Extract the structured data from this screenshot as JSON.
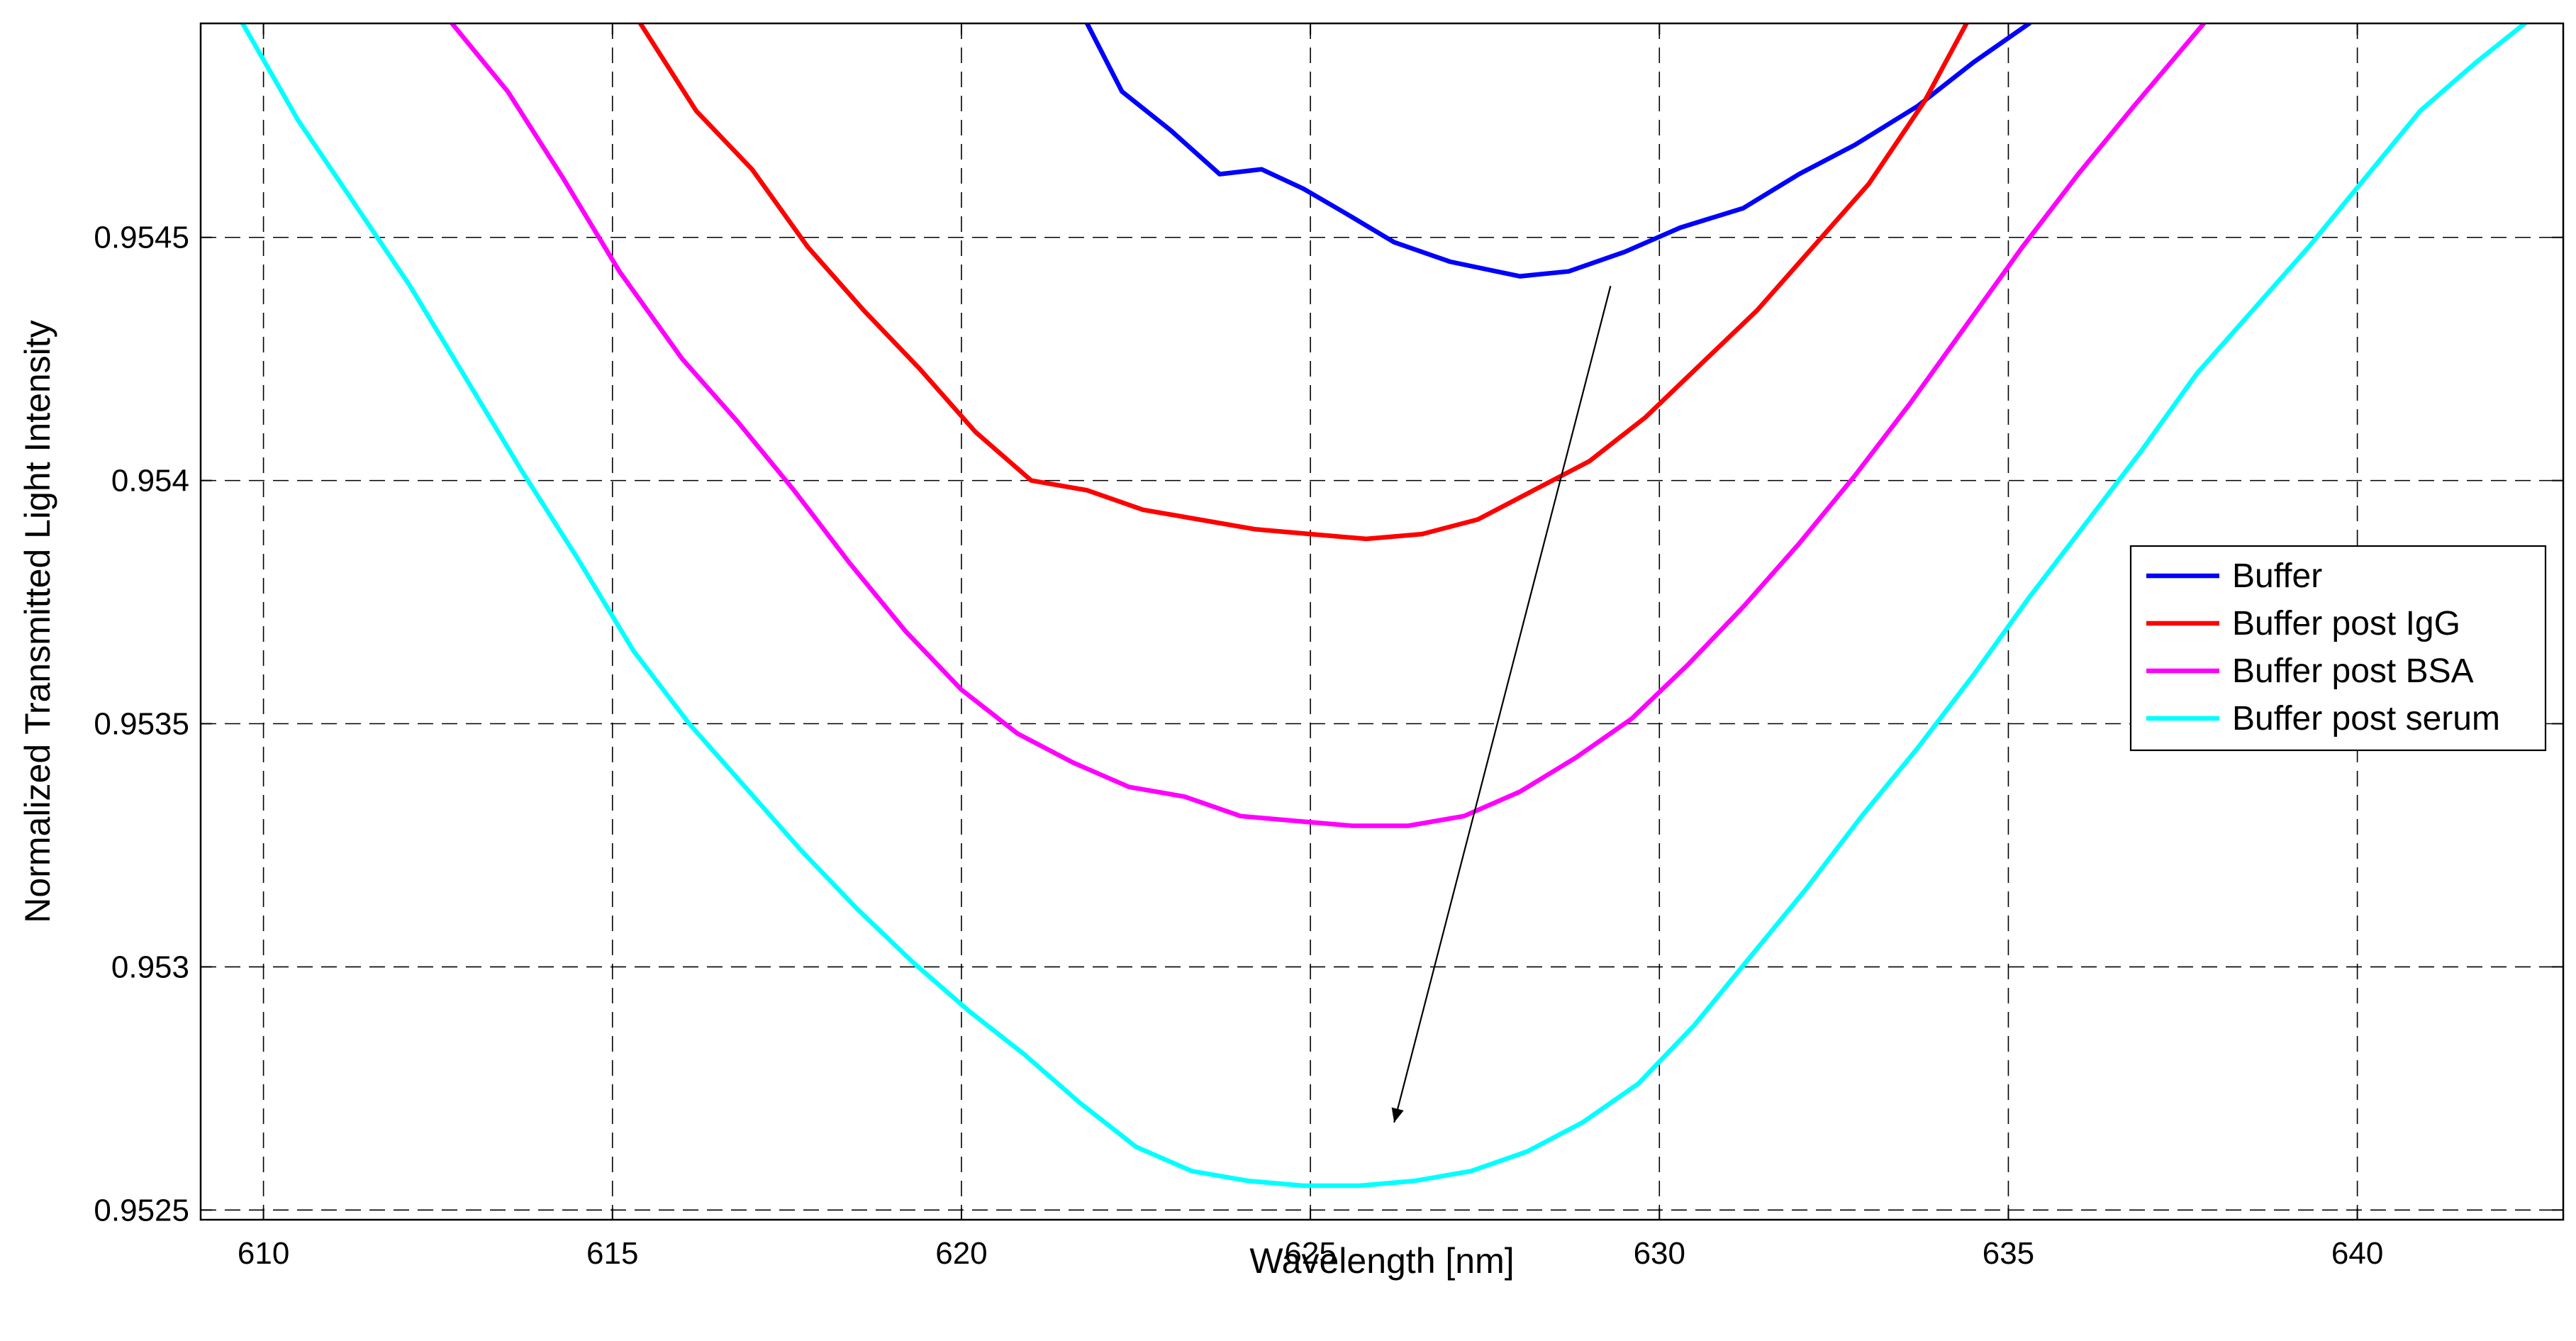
{
  "chart_data": {
    "type": "line",
    "title": "",
    "xlabel": "Wavelength [nm]",
    "ylabel": "Normalized Transmitted Light Intensity",
    "xlim": [
      609.1,
      642.95
    ],
    "ylim": [
      0.95248,
      0.95494
    ],
    "x_ticks": [
      610,
      615,
      620,
      625,
      630,
      635,
      640
    ],
    "x_tick_labels": [
      "610",
      "615",
      "620",
      "625",
      "630",
      "635",
      "640"
    ],
    "y_ticks": [
      0.9525,
      0.953,
      0.9535,
      0.954,
      0.9545
    ],
    "y_tick_labels": [
      "0.9525",
      "0.953",
      "0.9535",
      "0.954",
      "0.9545"
    ],
    "grid": true,
    "legend_position": "right",
    "series": [
      {
        "name": "Buffer",
        "color": "#0000ff",
        "x": [
          621.8,
          622.3,
          623.0,
          623.7,
          624.3,
          624.9,
          625.5,
          626.2,
          627.0,
          628.0,
          628.7,
          629.5,
          630.3,
          631.2,
          632.0,
          632.8,
          633.7,
          634.5,
          635.3
        ],
        "y": [
          0.95494,
          0.9548,
          0.95472,
          0.95463,
          0.95464,
          0.9546,
          0.95455,
          0.95449,
          0.95445,
          0.95442,
          0.95443,
          0.95447,
          0.95452,
          0.95456,
          0.95463,
          0.95469,
          0.95477,
          0.95486,
          0.95494
        ]
      },
      {
        "name": "Buffer post IgG",
        "color": "#ff0000",
        "x": [
          615.4,
          616.2,
          617.0,
          617.8,
          618.6,
          619.4,
          620.2,
          621.0,
          621.8,
          622.6,
          623.4,
          624.2,
          625.0,
          625.8,
          626.6,
          627.4,
          628.2,
          629.0,
          629.8,
          630.6,
          631.4,
          632.2,
          633.0,
          633.8,
          634.4
        ],
        "y": [
          0.95494,
          0.95476,
          0.95464,
          0.95448,
          0.95435,
          0.95423,
          0.9541,
          0.954,
          0.95398,
          0.95394,
          0.95392,
          0.9539,
          0.95389,
          0.95388,
          0.95389,
          0.95392,
          0.95398,
          0.95404,
          0.95413,
          0.95424,
          0.95435,
          0.95448,
          0.95461,
          0.95478,
          0.95494
        ]
      },
      {
        "name": "Buffer post BSA",
        "color": "#ff00ff",
        "x": [
          612.7,
          613.5,
          614.3,
          615.1,
          616.0,
          616.8,
          617.6,
          618.4,
          619.2,
          620.0,
          620.8,
          621.6,
          622.4,
          623.2,
          624.0,
          624.8,
          625.6,
          626.4,
          627.2,
          628.0,
          628.8,
          629.6,
          630.4,
          631.2,
          632.0,
          632.8,
          633.6,
          634.4,
          635.2,
          636.0,
          636.8,
          637.8
        ],
        "y": [
          0.95494,
          0.9548,
          0.95462,
          0.95443,
          0.95425,
          0.95412,
          0.95398,
          0.95383,
          0.95369,
          0.95357,
          0.95348,
          0.95342,
          0.95337,
          0.95335,
          0.95331,
          0.9533,
          0.95329,
          0.95329,
          0.95331,
          0.95336,
          0.95343,
          0.95351,
          0.95362,
          0.95374,
          0.95387,
          0.95401,
          0.95416,
          0.95432,
          0.95448,
          0.95463,
          0.95477,
          0.95494
        ]
      },
      {
        "name": "Buffer post serum",
        "color": "#00ffff",
        "x": [
          609.7,
          610.5,
          611.3,
          612.1,
          612.9,
          613.7,
          614.5,
          615.3,
          616.1,
          616.9,
          617.7,
          618.5,
          619.3,
          620.1,
          620.9,
          621.7,
          622.5,
          623.3,
          624.1,
          624.9,
          625.7,
          626.5,
          627.3,
          628.1,
          628.9,
          629.7,
          630.5,
          631.3,
          632.1,
          632.9,
          633.7,
          634.5,
          635.3,
          636.1,
          636.9,
          637.7,
          638.5,
          639.3,
          640.1,
          640.9,
          641.7,
          642.4
        ],
        "y": [
          0.95494,
          0.95474,
          0.95457,
          0.9544,
          0.95421,
          0.95402,
          0.95384,
          0.95365,
          0.9535,
          0.95337,
          0.95324,
          0.95312,
          0.95301,
          0.95291,
          0.95282,
          0.95272,
          0.95263,
          0.95258,
          0.95256,
          0.95255,
          0.95255,
          0.95256,
          0.95258,
          0.95262,
          0.95268,
          0.95276,
          0.95288,
          0.95302,
          0.95316,
          0.95331,
          0.95345,
          0.9536,
          0.95376,
          0.95391,
          0.95406,
          0.95422,
          0.95435,
          0.95448,
          0.95462,
          0.95476,
          0.95486,
          0.95494
        ]
      }
    ],
    "annotations": [
      {
        "type": "arrow",
        "from": [
          629.3,
          0.9544
        ],
        "to": [
          626.2,
          0.95268
        ]
      }
    ]
  }
}
